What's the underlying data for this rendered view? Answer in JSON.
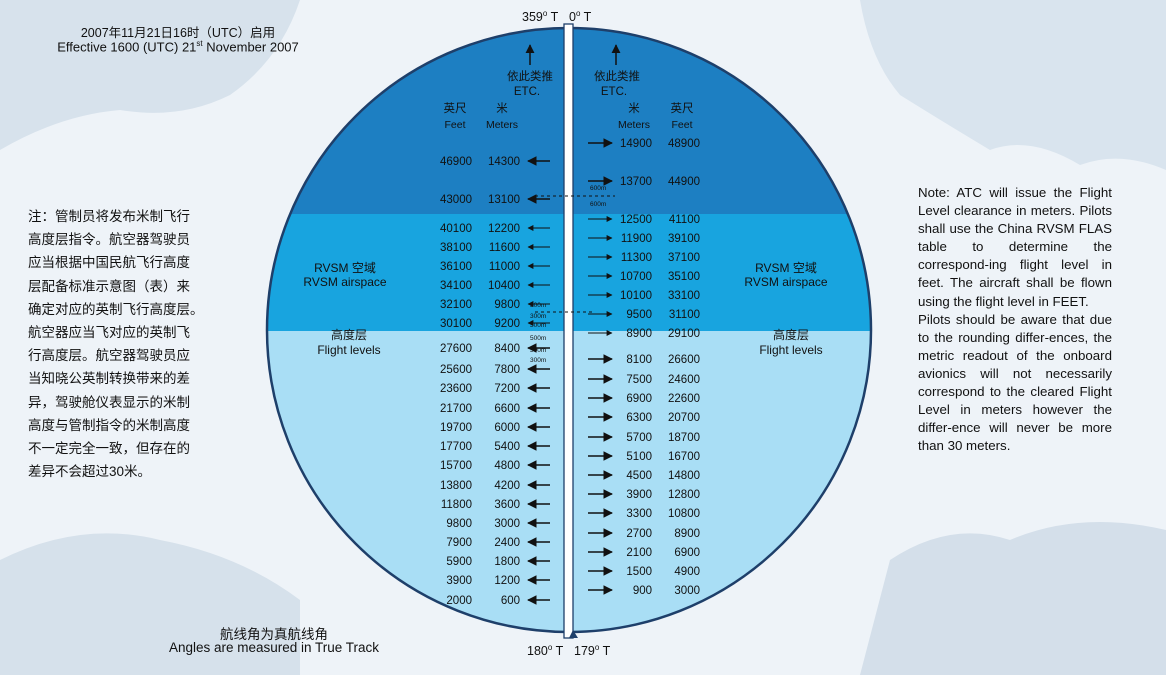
{
  "header": {
    "line_cn": "2007年11月21日16时（UTC）启用",
    "line_en_prefix": "Effective 1600 (UTC) 21",
    "line_en_sup": "st",
    "line_en_suffix": " November 2007"
  },
  "note_cn": "注：管制员将发布米制飞行\n高度层指令。航空器驾驶员\n应当根据中国民航飞行高度\n层配备标准示意图（表）来\n确定对应的英制飞行高度层。\n航空器应当飞对应的英制飞\n行高度层。航空器驾驶员应\n当知晓公英制转换带来的差\n异，驾驶舱仪表显示的米制\n高度与管制指令的米制高度\n不一定完全一致，但存在的\n差异不会超过30米。",
  "note_en": [
    "Note: ATC will issue the Flight Level clearance in meters. Pilots shall use the China RVSM FLAS table to determine the correspond-ing flight level in feet. The aircraft shall be flown using the flight level in FEET.",
    "Pilots should be aware that due to the rounding differ-ences, the metric readout of the onboard avionics will not necessarily correspond to the cleared Flight Level in meters however the differ-ence will never be more than 30 meters."
  ],
  "caption_cn": "航线角为真航线角",
  "caption_en": "Angles are measured in True Track",
  "bearings": {
    "top_left": "359",
    "top_right": "0",
    "bottom_left": "180",
    "bottom_right": "179",
    "unit": "T"
  },
  "diagram": {
    "etc_cn": "依此类推",
    "etc_en": "ETC.",
    "feet_cn": "英尺",
    "feet_en": "Feet",
    "meters_cn": "米",
    "meters_en": "Meters",
    "rvsm_cn": "RVSM 空域",
    "rvsm_en": "RVSM airspace",
    "levels_cn": "高度层",
    "levels_en": "Flight levels",
    "gap_600": "600m",
    "gap_500": "500m",
    "gap_300": "300m",
    "west": [
      {
        "feet": "46900",
        "meters": "14300"
      },
      {
        "feet": "43000",
        "meters": "13100"
      },
      {
        "feet": "40100",
        "meters": "12200"
      },
      {
        "feet": "38100",
        "meters": "11600"
      },
      {
        "feet": "36100",
        "meters": "11000"
      },
      {
        "feet": "34100",
        "meters": "10400"
      },
      {
        "feet": "32100",
        "meters": "9800"
      },
      {
        "feet": "30100",
        "meters": "9200"
      },
      {
        "feet": "27600",
        "meters": "8400"
      },
      {
        "feet": "25600",
        "meters": "7800"
      },
      {
        "feet": "23600",
        "meters": "7200"
      },
      {
        "feet": "21700",
        "meters": "6600"
      },
      {
        "feet": "19700",
        "meters": "6000"
      },
      {
        "feet": "17700",
        "meters": "5400"
      },
      {
        "feet": "15700",
        "meters": "4800"
      },
      {
        "feet": "13800",
        "meters": "4200"
      },
      {
        "feet": "11800",
        "meters": "3600"
      },
      {
        "feet": "9800",
        "meters": "3000"
      },
      {
        "feet": "7900",
        "meters": "2400"
      },
      {
        "feet": "5900",
        "meters": "1800"
      },
      {
        "feet": "3900",
        "meters": "1200"
      },
      {
        "feet": "2000",
        "meters": "600"
      }
    ],
    "east": [
      {
        "meters": "14900",
        "feet": "48900"
      },
      {
        "meters": "13700",
        "feet": "44900"
      },
      {
        "meters": "12500",
        "feet": "41100"
      },
      {
        "meters": "11900",
        "feet": "39100"
      },
      {
        "meters": "11300",
        "feet": "37100"
      },
      {
        "meters": "10700",
        "feet": "35100"
      },
      {
        "meters": "10100",
        "feet": "33100"
      },
      {
        "meters": "9500",
        "feet": "31100"
      },
      {
        "meters": "8900",
        "feet": "29100"
      },
      {
        "meters": "8100",
        "feet": "26600"
      },
      {
        "meters": "7500",
        "feet": "24600"
      },
      {
        "meters": "6900",
        "feet": "22600"
      },
      {
        "meters": "6300",
        "feet": "20700"
      },
      {
        "meters": "5700",
        "feet": "18700"
      },
      {
        "meters": "5100",
        "feet": "16700"
      },
      {
        "meters": "4500",
        "feet": "14800"
      },
      {
        "meters": "3900",
        "feet": "12800"
      },
      {
        "meters": "3300",
        "feet": "10800"
      },
      {
        "meters": "2700",
        "feet": "8900"
      },
      {
        "meters": "2100",
        "feet": "6900"
      },
      {
        "meters": "1500",
        "feet": "4900"
      },
      {
        "meters": "900",
        "feet": "3000"
      }
    ]
  },
  "colors": {
    "top_band": "#1d7fc2",
    "rvsm_band": "#18a4df",
    "lower_band": "#a9def5",
    "frame": "#1e3f6a"
  }
}
